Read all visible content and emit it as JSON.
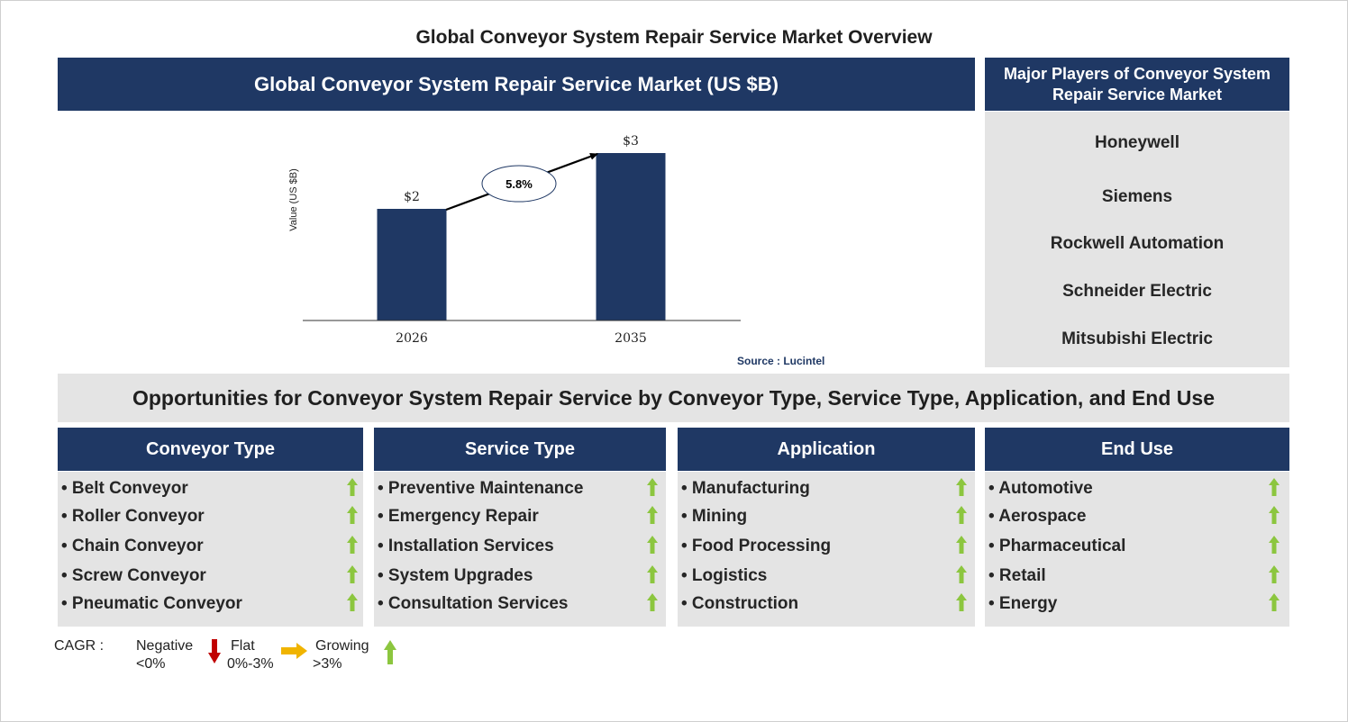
{
  "page_title": "Global Conveyor System Repair Service Market Overview",
  "market_header": "Global Conveyor System Repair Service Market (US $B)",
  "chart_data": {
    "type": "bar",
    "categories": [
      "2026",
      "2035"
    ],
    "values": [
      2,
      3
    ],
    "data_labels": [
      "$2",
      "$3"
    ],
    "ylabel": "Value (US $B)",
    "cagr_label": "5.8%",
    "bar_color": "#1f3864",
    "ylim": [
      0,
      3.2
    ]
  },
  "source": "Source : Lucintel",
  "players": {
    "title": "Major Players of Conveyor System Repair Service Market",
    "items": [
      "Honeywell",
      "Siemens",
      "Rockwell Automation",
      "Schneider Electric",
      "Mitsubishi Electric"
    ]
  },
  "opportunities_title": "Opportunities for Conveyor System Repair Service by Conveyor Type, Service Type, Application, and End Use",
  "segments": [
    {
      "title": "Conveyor Type",
      "items": [
        "• Belt Conveyor",
        "• Roller Conveyor",
        "• Chain Conveyor",
        "• Screw Conveyor",
        "• Pneumatic Conveyor"
      ]
    },
    {
      "title": "Service Type",
      "items": [
        "• Preventive Maintenance",
        "• Emergency Repair",
        "• Installation Services",
        "• System Upgrades",
        "• Consultation Services"
      ]
    },
    {
      "title": "Application",
      "items": [
        "• Manufacturing",
        "• Mining",
        "• Food Processing",
        "• Logistics",
        "• Construction"
      ]
    },
    {
      "title": "End Use",
      "items": [
        "• Automotive",
        "• Aerospace",
        "• Pharmaceutical",
        "• Retail",
        "• Energy"
      ]
    }
  ],
  "legend": {
    "label": "CAGR :",
    "negative": {
      "name": "Negative",
      "range": "<0%"
    },
    "flat": {
      "name": "Flat",
      "range": "0%-3%"
    },
    "growing": {
      "name": "Growing",
      "range": ">3%"
    }
  },
  "colors": {
    "navy": "#1f3864",
    "grey": "#e4e4e4",
    "growing": "#8cc63f",
    "negative": "#c00000",
    "flat": "#f0b400"
  }
}
